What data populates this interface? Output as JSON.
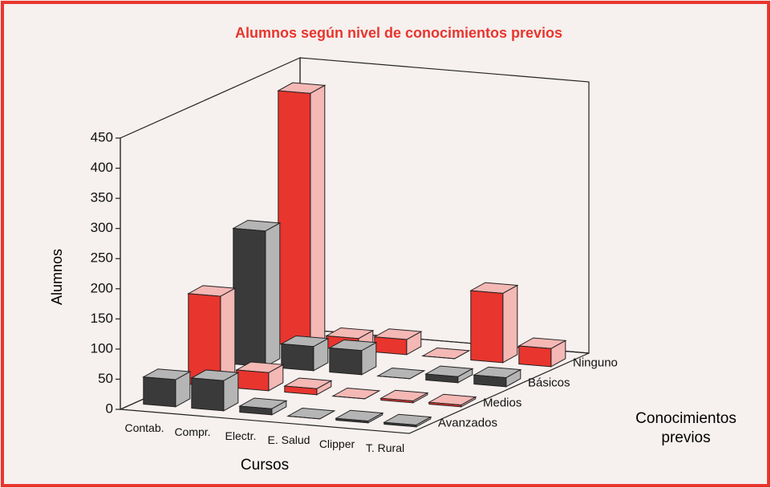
{
  "chart_data": {
    "type": "bar3d",
    "title": "Alumnos según  nivel de conocimientos previos",
    "y_label": "Alumnos",
    "x_label": "Cursos",
    "z_label": "Conocimientos previos",
    "categories": [
      "Contab.",
      "Compr.",
      "Electr.",
      "E. Salud",
      "Clipper",
      "T. Rural"
    ],
    "series": [
      {
        "name": "Avanzados",
        "color": "#3a3a3a",
        "values": [
          45,
          50,
          10,
          0,
          3,
          3
        ]
      },
      {
        "name": "Medios",
        "color": "#e8352e",
        "values": [
          150,
          30,
          10,
          0,
          3,
          3
        ]
      },
      {
        "name": "Básicos",
        "color": "#3a3a3a",
        "values": [
          225,
          40,
          40,
          0,
          10,
          15
        ]
      },
      {
        "name": "Ninguno",
        "color": "#e8352e",
        "values": [
          420,
          20,
          25,
          0,
          115,
          30
        ]
      }
    ],
    "ylim": [
      0,
      450
    ],
    "yticks": [
      0,
      50,
      100,
      150,
      200,
      250,
      300,
      350,
      400,
      450
    ]
  }
}
